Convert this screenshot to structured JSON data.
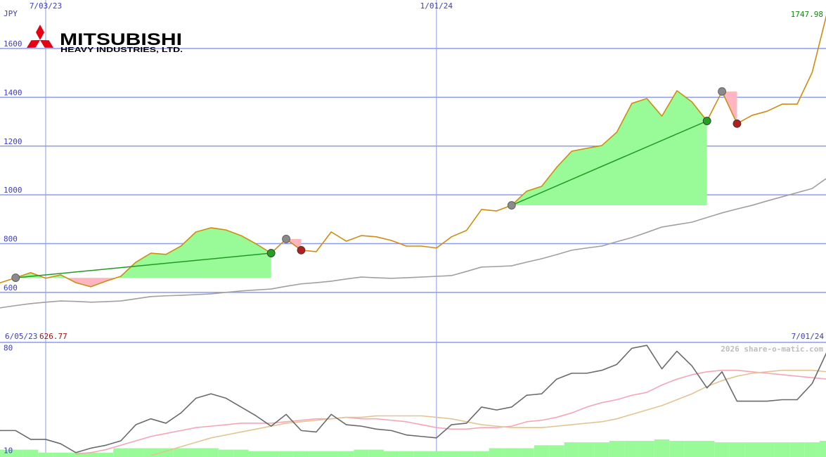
{
  "chart_data": [
    {
      "type": "line",
      "title": "MITSUBISHI",
      "subtitle": "HEAVY INDUSTRIES, LTD.",
      "y_label": "JPY",
      "categories": [
        "6/05/23",
        null,
        null,
        null,
        "7/03/23",
        null,
        null,
        null,
        null,
        null,
        null,
        null,
        null,
        null,
        null,
        null,
        null,
        null,
        null,
        null,
        null,
        null,
        null,
        null,
        null,
        null,
        null,
        null,
        null,
        null,
        "1/01/24",
        null,
        null,
        null,
        null,
        null,
        null,
        null,
        null,
        null,
        null,
        null,
        null,
        null,
        null,
        null,
        null,
        null,
        null,
        null,
        null,
        null,
        null,
        null,
        null,
        null,
        "7/01/24"
      ],
      "xlim": [
        0.96,
        55.92
      ],
      "ylim": [
        395,
        1799
      ],
      "yticks": [
        600,
        800,
        1000,
        1200,
        1400,
        1600
      ],
      "grid": true,
      "grid_color": "#8c9cf0",
      "series": [
        {
          "color": "#d08c10",
          "values": [
            626.77,
            640,
            660,
            681,
            658,
            672,
            640,
            623,
            646,
            666,
            724,
            761,
            756,
            790,
            848,
            865,
            856,
            833,
            799,
            761,
            819,
            773,
            767,
            848,
            810,
            833,
            828,
            813,
            790,
            790,
            782,
            828,
            854,
            940,
            934,
            957,
            1015,
            1035,
            1113,
            1179,
            1191,
            1202,
            1257,
            1375,
            1395,
            1323,
            1427,
            1381,
            1303,
            1424,
            1292,
            1326,
            1343,
            1372,
            1372,
            1502,
            1747.98
          ]
        },
        {
          "color": "#a0a0a0",
          "values": [
            530,
            537,
            546,
            554,
            560,
            565,
            563,
            560,
            562,
            565,
            574,
            583,
            586,
            588,
            591,
            594,
            600,
            606,
            610,
            614,
            625,
            635,
            640,
            646,
            655,
            663,
            660,
            658,
            660,
            663,
            666,
            669,
            686,
            704,
            706,
            709,
            724,
            738,
            755,
            773,
            782,
            790,
            808,
            825,
            846,
            868,
            878,
            888,
            907,
            926,
            942,
            957,
            975,
            992,
            1009,
            1026,
            1070
          ]
        }
      ],
      "trades": [
        {
          "entry": 2,
          "exit": 19
        },
        {
          "entry": 20,
          "exit": 21
        },
        {
          "entry": 35,
          "exit": 48
        },
        {
          "entry": 49,
          "exit": 50
        }
      ],
      "gain_color": "#98fb98",
      "loss_color": "#ffb6c1",
      "trade_line_color": "#229a22",
      "entry_color": "#8a8a8a",
      "win_color": "#22a022",
      "lose_color": "#b02020",
      "first_label_color": "#a01010",
      "last_label_color": "#108a10"
    },
    {
      "type": "line",
      "source": "2026 share-o-matic.com",
      "ylim": [
        6,
        84
      ],
      "yticks": [
        80,
        10
      ],
      "series": [
        {
          "kind": "bar",
          "color": "#98fb98",
          "values": [
            11,
            11,
            11,
            11,
            9,
            9,
            9,
            9,
            9,
            12,
            12,
            12,
            12,
            12,
            12,
            12,
            11,
            11,
            10,
            10,
            10,
            10,
            10,
            10,
            10,
            11,
            11,
            10,
            10,
            10,
            10,
            10,
            10,
            10,
            12,
            12,
            12,
            14,
            14,
            16,
            16,
            16,
            17,
            17,
            17,
            18,
            17,
            17,
            17,
            16,
            16,
            16,
            16,
            16,
            16,
            16,
            17
          ]
        },
        {
          "color": "#f4a6b8",
          "values": [
            null,
            null,
            null,
            null,
            null,
            null,
            8,
            9,
            11,
            14,
            17,
            20,
            22,
            24,
            26,
            27,
            28,
            29,
            29,
            29,
            30,
            31,
            32,
            32,
            33,
            32,
            32,
            31,
            30,
            28,
            26,
            25,
            25,
            26,
            26,
            27,
            30,
            31,
            33,
            36,
            40,
            43,
            45,
            48,
            50,
            55,
            59,
            62,
            64,
            65,
            65,
            64,
            63,
            62,
            61,
            60,
            59
          ]
        },
        {
          "color": "#e2c494",
          "values": [
            null,
            null,
            null,
            null,
            null,
            null,
            null,
            null,
            null,
            null,
            null,
            7,
            10,
            13,
            16,
            19,
            21,
            23,
            25,
            27,
            29,
            30,
            31,
            32,
            33,
            33,
            34,
            34,
            34,
            34,
            33,
            32,
            30,
            28,
            27,
            26,
            26,
            26,
            27,
            28,
            29,
            30,
            32,
            35,
            38,
            41,
            45,
            49,
            54,
            58,
            61,
            63,
            64,
            65,
            65,
            65,
            64
          ]
        },
        {
          "color": "#6a6a6a",
          "values": [
            23,
            24,
            24,
            18,
            18,
            15,
            9,
            12,
            14,
            17,
            28,
            32,
            29,
            36,
            46,
            49,
            46,
            40,
            34,
            27,
            35,
            24,
            23,
            35,
            28,
            27,
            25,
            24,
            21,
            20,
            19,
            28,
            29,
            40,
            38,
            40,
            48,
            49,
            59,
            63,
            63,
            65,
            69,
            80,
            82,
            66,
            78,
            68,
            53,
            64,
            44,
            44,
            44,
            45,
            45,
            56,
            78
          ]
        }
      ]
    }
  ]
}
